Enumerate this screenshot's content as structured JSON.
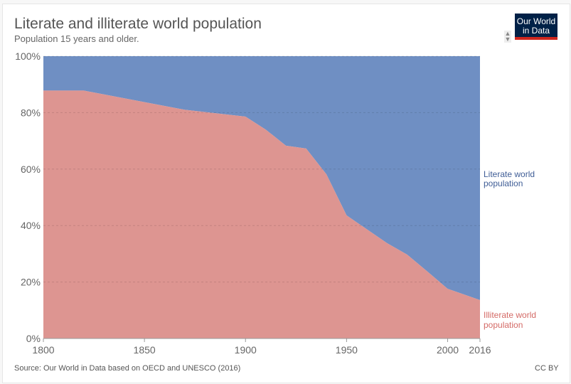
{
  "header": {
    "title": "Literate and illiterate world population",
    "subtitle": "Population 15 years and older.",
    "logo": "Our World in Data"
  },
  "footer": {
    "source": "Source: Our World in Data based on OECD and UNESCO (2016)",
    "license": "CC BY"
  },
  "colors": {
    "literate": "#6f8fc3",
    "illiterate": "#dd9591"
  },
  "chart_data": {
    "type": "area",
    "stacked": true,
    "title": "Literate and illiterate world population",
    "x": [
      1800,
      1820,
      1870,
      1900,
      1910,
      1920,
      1930,
      1940,
      1950,
      1960,
      1970,
      1980,
      1990,
      2000,
      2016
    ],
    "series": [
      {
        "name": "Illiterate world population",
        "values": [
          87.8,
          87.8,
          81,
          78.6,
          74,
          68.3,
          67.3,
          58.2,
          43.6,
          38.7,
          33.8,
          29.7,
          23.7,
          17.6,
          13.6
        ]
      },
      {
        "name": "Literate world population",
        "values": [
          12.2,
          12.2,
          19,
          21.4,
          26,
          31.7,
          32.7,
          41.8,
          56.4,
          61.3,
          66.2,
          70.3,
          76.3,
          82.4,
          86.4
        ]
      }
    ],
    "xlim": [
      1800,
      2016
    ],
    "ylim": [
      0,
      100
    ],
    "xticks": [
      "1800",
      "1850",
      "1900",
      "1950",
      "2000",
      "2016"
    ],
    "yticks": [
      "0%",
      "20%",
      "40%",
      "60%",
      "80%",
      "100%"
    ],
    "legend_labels": {
      "literate": [
        "Literate world",
        "population"
      ],
      "illiterate": [
        "Illiterate world",
        "population"
      ]
    },
    "grid": true
  }
}
